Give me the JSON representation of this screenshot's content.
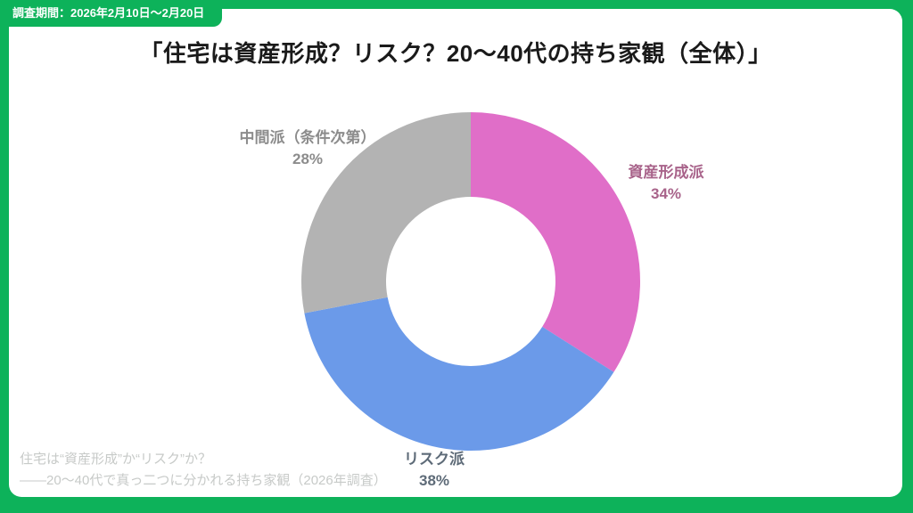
{
  "frame": {
    "badge": "調査期間：2026年2月10日〜2月20日"
  },
  "title": "「住宅は資産形成？リスク？20〜40代の持ち家観（全体）」",
  "footer": {
    "line1": "住宅は“資産形成”か“リスク”か？",
    "line2": "——20〜40代で真っ二つに分かれる持ち家観（2026年調査）"
  },
  "colors": {
    "frame_green": "#0db25a",
    "card_background": "#ffffff",
    "title_text": "#1a1a1a",
    "footer_text": "#c7cac8"
  },
  "chart_data": {
    "type": "pie",
    "subtype": "donut",
    "title": "「住宅は資産形成？リスク？20〜40代の持ち家観（全体）」",
    "categories": [
      "資産形成派",
      "リスク派",
      "中間派（条件次第）"
    ],
    "values": [
      34,
      38,
      28
    ],
    "unit": "%",
    "data_labels": [
      "34%",
      "38%",
      "28%"
    ],
    "colors": [
      "#e06ec8",
      "#6b9ae9",
      "#b3b3b3"
    ],
    "label_colors": [
      "#a8638a",
      "#5e6b78",
      "#8c8c8c"
    ],
    "start_angle": "top",
    "direction": "clockwise",
    "inner_radius_ratio": 0.5,
    "legend": false,
    "labels_position": "outside"
  }
}
